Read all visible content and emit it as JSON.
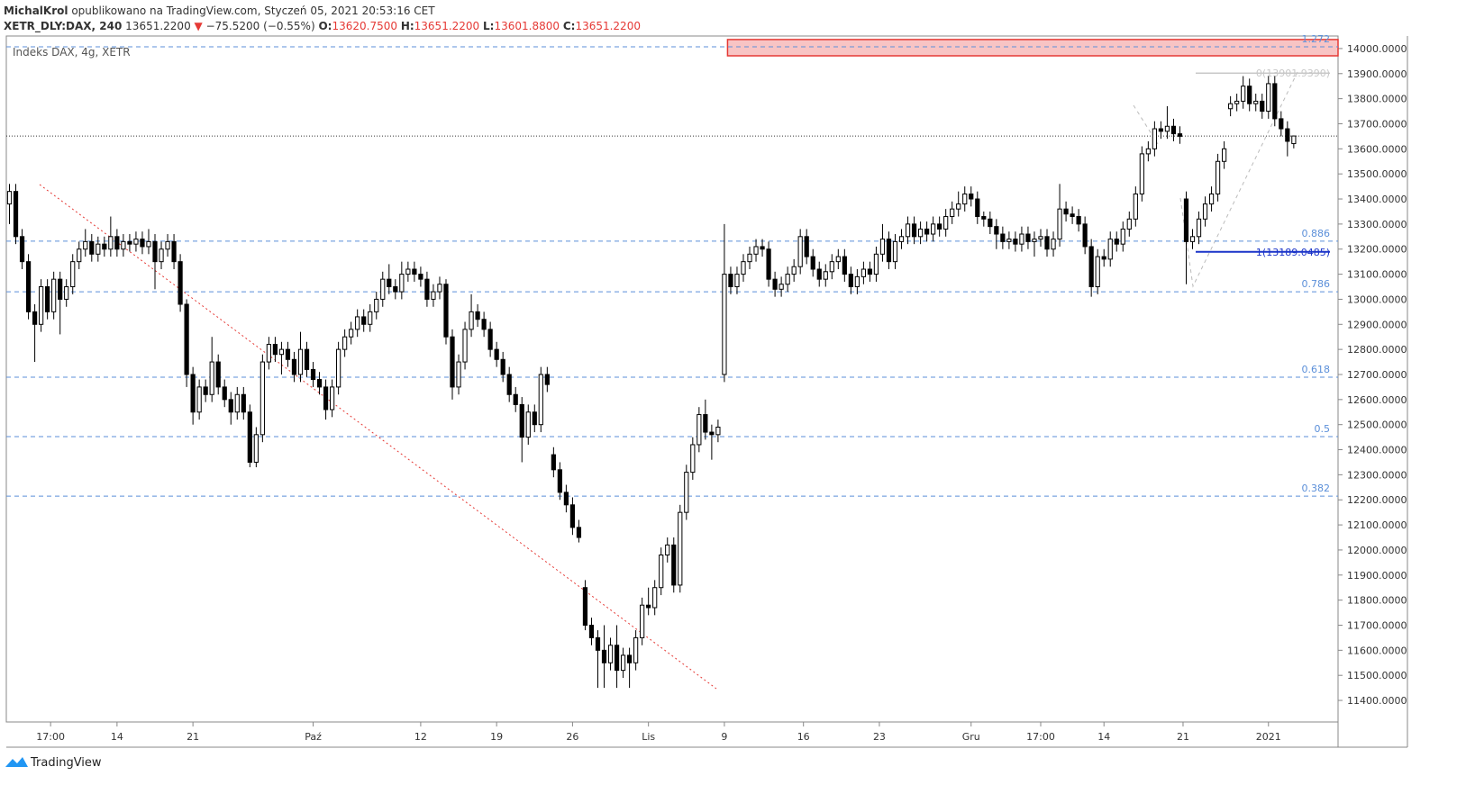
{
  "header": {
    "author": "MichalKrol",
    "published": "opublikowano na TradingView.com, Styczeń 05, 2021 20:53:16 CET",
    "symbol": "XETR_DLY:DAX, 240",
    "last": "13651.2200",
    "arrow": "▼",
    "change": "−75.5200 (−0.55%)",
    "o_label": "O:",
    "o": "13620.7500",
    "h_label": "H:",
    "h": "13651.2200",
    "l_label": "L:",
    "l": "13601.8800",
    "c_label": "C:",
    "c": "13651.2200"
  },
  "footer": {
    "brand": "TradingView"
  },
  "chart_data": {
    "type": "candlestick",
    "legend": "Indeks DAX, 4g, XETR",
    "x": [
      0,
      1,
      2,
      3,
      4,
      5,
      6,
      7,
      8,
      9,
      10,
      11,
      12,
      13,
      14,
      15,
      16,
      17,
      18,
      19,
      20,
      21,
      22,
      23,
      24,
      25,
      26,
      27,
      28,
      29,
      30,
      31,
      32,
      33,
      34,
      35,
      36,
      37,
      38,
      39,
      40,
      41,
      42,
      43,
      44,
      45,
      46,
      47,
      48,
      49,
      50,
      51,
      52,
      53,
      54,
      55,
      56,
      57,
      58,
      59,
      60,
      61,
      62,
      63,
      64,
      65,
      66,
      67,
      68,
      69,
      70,
      71,
      72,
      73,
      74,
      75,
      76,
      77,
      78,
      79,
      80,
      81,
      82,
      83,
      84,
      85,
      86,
      87,
      88,
      89,
      90,
      91,
      92,
      93,
      94,
      95,
      96,
      97,
      98,
      99,
      100,
      101,
      102,
      103,
      104,
      105,
      106,
      107,
      108,
      109,
      110,
      111,
      112,
      113,
      114,
      115,
      116,
      117,
      118,
      119,
      120,
      121,
      122,
      123,
      124,
      125,
      126,
      127,
      128,
      129,
      130,
      131,
      132,
      133,
      134,
      135,
      136,
      137,
      138,
      139,
      140,
      141,
      142,
      143,
      144,
      145,
      146,
      147,
      148,
      149,
      150,
      151,
      152,
      153,
      154,
      155,
      156,
      157,
      158,
      159,
      160,
      161,
      162,
      163,
      164,
      165,
      166,
      167,
      168,
      169,
      170,
      171,
      172,
      173,
      174,
      175,
      176,
      177,
      178,
      179,
      180,
      181,
      182,
      183,
      184,
      185,
      186,
      187,
      188,
      189,
      190,
      191,
      192,
      193,
      194,
      195,
      196,
      197,
      198,
      199,
      200,
      201,
      202,
      203
    ],
    "open": [
      13380,
      13430,
      13250,
      13150,
      12950,
      12900,
      13050,
      12950,
      13080,
      13000,
      13050,
      13150,
      13200,
      13230,
      13180,
      13220,
      13200,
      13250,
      13200,
      13230,
      13220,
      13240,
      13210,
      13230,
      13150,
      13200,
      13230,
      13150,
      12980,
      12700,
      12550,
      12650,
      12620,
      12750,
      12650,
      12600,
      12550,
      12620,
      12550,
      12350,
      12460,
      12750,
      12820,
      12780,
      12800,
      12760,
      12700,
      12800,
      12720,
      12680,
      12650,
      12560,
      12650,
      12800,
      12850,
      12880,
      12930,
      12900,
      12950,
      13000,
      13080,
      13050,
      13030,
      13100,
      13120,
      13100,
      13080,
      13000,
      13030,
      13060,
      12850,
      12650,
      12750,
      12880,
      12950,
      12920,
      12880,
      12800,
      12760,
      12700,
      12620,
      12580,
      12450,
      12550,
      12500,
      12700,
      12380,
      12320,
      12230,
      12180,
      12090,
      11850,
      11700,
      11650,
      11600,
      11550,
      11620,
      11520,
      11580,
      11550,
      11650,
      11780,
      11770,
      11850,
      11980,
      12020,
      11860,
      12150,
      12310,
      12420,
      12540,
      12470,
      12460,
      12700,
      13100,
      13050,
      13100,
      13150,
      13180,
      13210,
      13200,
      13080,
      13040,
      13060,
      13100,
      13130,
      13250,
      13170,
      13120,
      13080,
      13110,
      13150,
      13170,
      13100,
      13050,
      13090,
      13120,
      13100,
      13180,
      13240,
      13150,
      13230,
      13250,
      13300,
      13250,
      13280,
      13260,
      13300,
      13280,
      13330,
      13360,
      13380,
      13420,
      13400,
      13330,
      13320,
      13290,
      13260,
      13230,
      13240,
      13220,
      13260,
      13230,
      13240,
      13250,
      13200,
      13240,
      13360,
      13340,
      13330,
      13300,
      13210,
      13050,
      13170,
      13160,
      13240,
      13220,
      13280,
      13320,
      13420,
      13580,
      13600,
      13680,
      13670,
      13690,
      13660,
      13400,
      13230,
      13250,
      13320,
      13380,
      13420,
      13550,
      13760,
      13780,
      13790,
      13850,
      13780,
      13790,
      13750,
      13860,
      13720,
      13680,
      13620.75
    ],
    "high": [
      13460,
      13460,
      13280,
      13180,
      12980,
      13080,
      13080,
      13110,
      13110,
      13080,
      13180,
      13230,
      13280,
      13260,
      13250,
      13250,
      13330,
      13280,
      13260,
      13260,
      13270,
      13270,
      13280,
      13260,
      13230,
      13260,
      13260,
      13180,
      13000,
      12730,
      12680,
      12680,
      12850,
      12780,
      12680,
      12630,
      12650,
      12650,
      12580,
      12490,
      12780,
      12850,
      12850,
      12830,
      12830,
      12790,
      12870,
      12830,
      12750,
      12710,
      12680,
      12680,
      12830,
      12880,
      12910,
      12960,
      12960,
      12980,
      13030,
      13110,
      13140,
      13080,
      13150,
      13150,
      13150,
      13130,
      13110,
      13060,
      13090,
      13080,
      12880,
      12780,
      12910,
      13020,
      12980,
      12950,
      12910,
      12830,
      12790,
      12730,
      12650,
      12610,
      12580,
      12580,
      12730,
      12730,
      12410,
      12350,
      12260,
      12210,
      12120,
      11880,
      11730,
      11680,
      11700,
      11650,
      11700,
      11610,
      11610,
      11680,
      11810,
      11850,
      11880,
      12010,
      12050,
      12050,
      12180,
      12340,
      12450,
      12570,
      12600,
      12500,
      12520,
      13300,
      13130,
      13130,
      13180,
      13210,
      13240,
      13240,
      13230,
      13110,
      13090,
      13130,
      13160,
      13280,
      13280,
      13200,
      13150,
      13140,
      13180,
      13200,
      13200,
      13130,
      13120,
      13150,
      13150,
      13210,
      13300,
      13270,
      13260,
      13280,
      13330,
      13330,
      13310,
      13310,
      13330,
      13330,
      13360,
      13390,
      13430,
      13450,
      13450,
      13430,
      13350,
      13350,
      13320,
      13290,
      13270,
      13270,
      13290,
      13290,
      13270,
      13280,
      13280,
      13270,
      13460,
      13390,
      13370,
      13360,
      13330,
      13240,
      13200,
      13200,
      13270,
      13270,
      13310,
      13350,
      13450,
      13610,
      13630,
      13710,
      13710,
      13770,
      13720,
      13690,
      13430,
      13280,
      13350,
      13410,
      13450,
      13580,
      13630,
      13810,
      13820,
      13890,
      13880,
      13820,
      13820,
      13890,
      13890,
      13750,
      13710,
      13651.22
    ],
    "low": [
      13300,
      13220,
      13120,
      12920,
      12750,
      12870,
      12920,
      12920,
      12860,
      12970,
      13020,
      13120,
      13170,
      13150,
      13150,
      13170,
      13170,
      13170,
      13170,
      13190,
      13190,
      13180,
      13180,
      13040,
      13120,
      13170,
      13120,
      12950,
      12650,
      12500,
      12520,
      12590,
      12590,
      12620,
      12570,
      12500,
      12520,
      12520,
      12330,
      12330,
      12430,
      12720,
      12750,
      12700,
      12730,
      12670,
      12670,
      12690,
      12650,
      12620,
      12520,
      12530,
      12620,
      12770,
      12820,
      12850,
      12870,
      12870,
      12920,
      12970,
      13020,
      13000,
      13000,
      13070,
      13070,
      13050,
      12970,
      12970,
      13000,
      12820,
      12600,
      12620,
      12720,
      12850,
      12890,
      12850,
      12770,
      12730,
      12670,
      12590,
      12550,
      12350,
      12420,
      12470,
      12470,
      12630,
      12290,
      12200,
      12150,
      12060,
      12030,
      11680,
      11620,
      11450,
      11450,
      11520,
      11450,
      11490,
      11450,
      11520,
      11620,
      11740,
      11740,
      11820,
      11950,
      11830,
      11830,
      12120,
      12280,
      12390,
      12440,
      12360,
      12430,
      12670,
      13020,
      13020,
      13070,
      13120,
      13150,
      13170,
      13050,
      13010,
      13010,
      13030,
      13070,
      13100,
      13140,
      13090,
      13050,
      13050,
      13080,
      13120,
      13070,
      13020,
      13020,
      13060,
      13070,
      13070,
      13150,
      13120,
      13120,
      13200,
      13220,
      13220,
      13220,
      13230,
      13230,
      13250,
      13250,
      13300,
      13330,
      13350,
      13370,
      13300,
      13290,
      13260,
      13200,
      13200,
      13200,
      13190,
      13190,
      13200,
      13170,
      13210,
      13170,
      13170,
      13210,
      13310,
      13300,
      13270,
      13180,
      13010,
      13020,
      13130,
      13130,
      13190,
      13190,
      13250,
      13290,
      13390,
      13550,
      13570,
      13640,
      13640,
      13630,
      13620,
      13060,
      13200,
      13220,
      13290,
      13350,
      13390,
      13520,
      13730,
      13750,
      13760,
      13750,
      13750,
      13720,
      13720,
      13690,
      13650,
      13570,
      13601.88
    ],
    "close": [
      13430,
      13250,
      13150,
      12950,
      12900,
      13050,
      12950,
      13080,
      13000,
      13050,
      13150,
      13200,
      13230,
      13180,
      13220,
      13200,
      13250,
      13200,
      13230,
      13220,
      13240,
      13210,
      13230,
      13150,
      13200,
      13230,
      13150,
      12980,
      12700,
      12550,
      12650,
      12620,
      12750,
      12650,
      12600,
      12550,
      12620,
      12550,
      12350,
      12460,
      12750,
      12820,
      12780,
      12800,
      12760,
      12700,
      12800,
      12720,
      12680,
      12650,
      12560,
      12650,
      12800,
      12850,
      12880,
      12930,
      12900,
      12950,
      13000,
      13080,
      13050,
      13030,
      13100,
      13120,
      13100,
      13080,
      13000,
      13030,
      13060,
      12850,
      12650,
      12750,
      12880,
      12950,
      12920,
      12880,
      12800,
      12760,
      12700,
      12620,
      12580,
      12450,
      12550,
      12500,
      12700,
      12660,
      12320,
      12230,
      12180,
      12090,
      12050,
      11700,
      11650,
      11600,
      11550,
      11620,
      11520,
      11580,
      11550,
      11650,
      11780,
      11770,
      11850,
      11980,
      12020,
      11860,
      12150,
      12310,
      12420,
      12540,
      12470,
      12460,
      12490,
      13100,
      13050,
      13100,
      13150,
      13180,
      13210,
      13200,
      13080,
      13040,
      13060,
      13100,
      13130,
      13250,
      13170,
      13120,
      13080,
      13110,
      13150,
      13170,
      13100,
      13050,
      13090,
      13120,
      13100,
      13180,
      13240,
      13150,
      13230,
      13250,
      13300,
      13250,
      13280,
      13260,
      13300,
      13280,
      13330,
      13360,
      13380,
      13420,
      13400,
      13330,
      13320,
      13290,
      13260,
      13230,
      13240,
      13220,
      13260,
      13230,
      13240,
      13250,
      13200,
      13240,
      13360,
      13340,
      13330,
      13300,
      13210,
      13050,
      13170,
      13160,
      13240,
      13220,
      13280,
      13320,
      13420,
      13580,
      13600,
      13680,
      13670,
      13690,
      13660,
      13650,
      13230,
      13250,
      13320,
      13380,
      13420,
      13550,
      13600,
      13780,
      13790,
      13850,
      13780,
      13790,
      13750,
      13860,
      13720,
      13680,
      13630,
      13651.22
    ],
    "up_color": "#ffffff",
    "down_color": "#000000",
    "xlim": [
      -0.5,
      210
    ],
    "ylim": [
      11314,
      14050
    ],
    "xticks": [
      {
        "value": 6.5,
        "label": "17:00"
      },
      {
        "value": 17,
        "label": "14"
      },
      {
        "value": 29,
        "label": "21"
      },
      {
        "value": 48,
        "label": "Paź"
      },
      {
        "value": 65,
        "label": "12"
      },
      {
        "value": 77,
        "label": "19"
      },
      {
        "value": 89,
        "label": "26"
      },
      {
        "value": 101,
        "label": "Lis"
      },
      {
        "value": 113,
        "label": "9"
      },
      {
        "value": 125.5,
        "label": "16"
      },
      {
        "value": 137.5,
        "label": "23"
      },
      {
        "value": 152,
        "label": "Gru"
      },
      {
        "value": 163,
        "label": "17:00"
      },
      {
        "value": 173,
        "label": "14"
      },
      {
        "value": 185.5,
        "label": "21"
      },
      {
        "value": 199,
        "label": "2021"
      }
    ],
    "yticks": [
      {
        "value": 11400,
        "label": "11400.0000"
      },
      {
        "value": 11500,
        "label": "11500.0000"
      },
      {
        "value": 11600,
        "label": "11600.0000"
      },
      {
        "value": 11700,
        "label": "11700.0000"
      },
      {
        "value": 11800,
        "label": "11800.0000"
      },
      {
        "value": 11900,
        "label": "11900.0000"
      },
      {
        "value": 12000,
        "label": "12000.0000"
      },
      {
        "value": 12100,
        "label": "12100.0000"
      },
      {
        "value": 12200,
        "label": "12200.0000"
      },
      {
        "value": 12300,
        "label": "12300.0000"
      },
      {
        "value": 12400,
        "label": "12400.0000"
      },
      {
        "value": 12500,
        "label": "12500.0000"
      },
      {
        "value": 12600,
        "label": "12600.0000"
      },
      {
        "value": 12700,
        "label": "12700.0000"
      },
      {
        "value": 12800,
        "label": "12800.0000"
      },
      {
        "value": 12900,
        "label": "12900.0000"
      },
      {
        "value": 13000,
        "label": "13000.0000"
      },
      {
        "value": 13100,
        "label": "13100.0000"
      },
      {
        "value": 13200,
        "label": "13200.0000"
      },
      {
        "value": 13300,
        "label": "13300.0000"
      },
      {
        "value": 13400,
        "label": "13400.0000"
      },
      {
        "value": 13500,
        "label": "13500.0000"
      },
      {
        "value": 13600,
        "label": "13600.0000"
      },
      {
        "value": 13700,
        "label": "13700.0000"
      },
      {
        "value": 13800,
        "label": "13800.0000"
      },
      {
        "value": 13900,
        "label": "13900.0000"
      },
      {
        "value": 14000,
        "label": "14000.0000"
      }
    ],
    "levels": [
      {
        "label": "1.272",
        "value": 14007
      },
      {
        "label": "0.886",
        "value": 13232
      },
      {
        "label": "0.786",
        "value": 13030
      },
      {
        "label": "0.618",
        "value": 12689
      },
      {
        "label": "0.5",
        "value": 12452
      },
      {
        "label": "0.382",
        "value": 12215
      }
    ],
    "level_color": "#5b8fd9",
    "annotations": [
      {
        "label": "0(13901.9390)",
        "value": 13901.939,
        "x": 187.5,
        "color": "#c8c8c8"
      },
      {
        "label": "1(13189.0485)",
        "value": 13189.0485,
        "x": 187.5,
        "color": "#1a33c8"
      }
    ],
    "zone": {
      "x": 113.5,
      "low": 13971,
      "high": 14036,
      "color": "#f8c4c4"
    },
    "last_price": 13651.22
  }
}
